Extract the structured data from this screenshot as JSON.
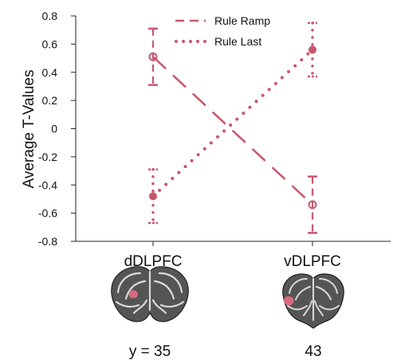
{
  "chart_data": {
    "type": "line",
    "ylabel": "Average T-Values",
    "xlabel": "",
    "categories": [
      "dDLPFC",
      "vDLPFC"
    ],
    "ylim": [
      -0.8,
      0.8
    ],
    "yticks": [
      "0.8",
      "0.6",
      "0.4",
      "0.2",
      "0",
      "-0.2",
      "-0.4",
      "-0.6",
      "-0.8"
    ],
    "ytick_values": [
      0.8,
      0.6,
      0.4,
      0.2,
      0,
      -0.2,
      -0.4,
      -0.6,
      -0.8
    ],
    "legend_position": "top-center",
    "grid": false,
    "series": [
      {
        "name": "Rule Ramp",
        "style": "dashed",
        "values": [
          0.51,
          -0.54
        ],
        "error_low": [
          0.31,
          -0.74
        ],
        "error_high": [
          0.71,
          -0.34
        ]
      },
      {
        "name": "Rule Last",
        "style": "dotted",
        "values": [
          -0.48,
          0.56
        ],
        "error_low": [
          -0.67,
          0.37
        ],
        "error_high": [
          -0.29,
          0.75
        ]
      }
    ],
    "color": "#c8566b"
  },
  "brain_slices": [
    {
      "label": "y = 35",
      "kind": "coronal-full"
    },
    {
      "label": "43",
      "kind": "coronal-small"
    }
  ]
}
